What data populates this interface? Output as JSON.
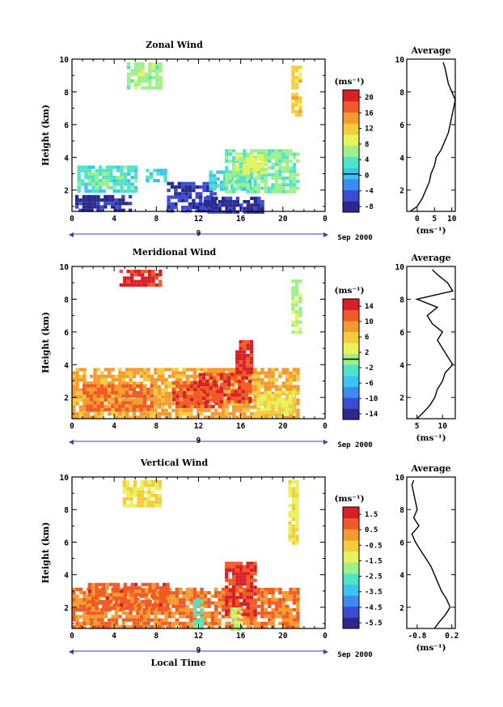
{
  "figure": {
    "date_label": "Sep 2000",
    "x_axis_title": "Local Time",
    "y_axis_title": "Height (km)",
    "unit": "(ms⁻¹)",
    "profile_title": "Average",
    "day_label": "9"
  },
  "chart_data": [
    {
      "type": "heatmap",
      "title": "Zonal Wind",
      "ylabel": "Height (km)",
      "x_ticks": [
        "0",
        "4",
        "8",
        "12",
        "16",
        "20",
        "0"
      ],
      "x_range": [
        0,
        24
      ],
      "y_ticks": [
        "2",
        "4",
        "6",
        "8",
        "10"
      ],
      "y_range": [
        0.7,
        10
      ],
      "colorbar_ticks": [
        "20",
        "16",
        "12",
        "8",
        "4",
        "0",
        "-4",
        "-8"
      ],
      "colorbar_range": [
        -10,
        22
      ],
      "colorbar_zero": 0,
      "patches": [
        {
          "t0": 0.3,
          "t1": 5.5,
          "z0": 0.7,
          "z1": 1.7,
          "v": -8
        },
        {
          "t0": 0.5,
          "t1": 6.0,
          "z0": 1.9,
          "z1": 3.5,
          "v": 3
        },
        {
          "t0": 1.5,
          "t1": 3.5,
          "z0": 2.4,
          "z1": 3.1,
          "v": 5
        },
        {
          "t0": 7.0,
          "t1": 9.0,
          "z0": 2.5,
          "z1": 3.3,
          "v": 2
        },
        {
          "t0": 9.0,
          "t1": 13.5,
          "z0": 0.7,
          "z1": 2.5,
          "v": -7
        },
        {
          "t0": 12.5,
          "t1": 18.0,
          "z0": 0.7,
          "z1": 1.6,
          "v": -8
        },
        {
          "t0": 13.0,
          "t1": 17.0,
          "z0": 2.0,
          "z1": 3.2,
          "v": 2
        },
        {
          "t0": 14.5,
          "t1": 21.5,
          "z0": 1.8,
          "z1": 4.5,
          "v": 5
        },
        {
          "t0": 15.5,
          "t1": 18.5,
          "z0": 3.0,
          "z1": 4.2,
          "v": 8
        },
        {
          "t0": 5.2,
          "t1": 8.3,
          "z0": 8.2,
          "z1": 9.8,
          "v": 6
        },
        {
          "t0": 20.8,
          "t1": 21.6,
          "z0": 6.5,
          "z1": 9.6,
          "v": 12
        }
      ],
      "profile": {
        "x_ticks": [
          "0",
          "5",
          "10"
        ],
        "x_range": [
          -3,
          11
        ],
        "z": [
          0.7,
          1.0,
          1.5,
          2.0,
          2.5,
          3.0,
          3.5,
          4.0,
          4.5,
          5.0,
          5.5,
          6.0,
          6.5,
          7.0,
          7.5,
          8.0,
          8.5,
          9.0,
          9.5,
          9.8
        ],
        "v": [
          -2,
          0,
          1.5,
          2.5,
          3.5,
          4,
          5,
          5.5,
          7,
          8,
          9,
          9.5,
          10,
          10.5,
          11,
          10,
          9,
          8.5,
          8,
          7.5
        ]
      }
    },
    {
      "type": "heatmap",
      "title": "Meridional Wind",
      "ylabel": "Height (km)",
      "x_ticks": [
        "0",
        "4",
        "8",
        "12",
        "16",
        "20",
        "0"
      ],
      "x_range": [
        0,
        24
      ],
      "y_ticks": [
        "2",
        "4",
        "6",
        "8",
        "10"
      ],
      "y_range": [
        0.7,
        10
      ],
      "colorbar_ticks": [
        "14",
        "10",
        "6",
        "2",
        "-2",
        "-6",
        "-10",
        "-14"
      ],
      "colorbar_range": [
        -16,
        16
      ],
      "colorbar_zero": 0,
      "patches": [
        {
          "t0": 0.0,
          "t1": 21.5,
          "z0": 0.7,
          "z1": 3.8,
          "v": 8
        },
        {
          "t0": 1.0,
          "t1": 7.5,
          "z0": 1.2,
          "z1": 2.8,
          "v": 11
        },
        {
          "t0": 9.5,
          "t1": 14.0,
          "z0": 1.5,
          "z1": 3.0,
          "v": 12
        },
        {
          "t0": 12.0,
          "t1": 17.0,
          "z0": 1.8,
          "z1": 3.5,
          "v": 13
        },
        {
          "t0": 15.5,
          "t1": 17.0,
          "z0": 3.5,
          "z1": 5.5,
          "v": 14
        },
        {
          "t0": 4.5,
          "t1": 8.5,
          "z0": 8.8,
          "z1": 9.8,
          "v": 14
        },
        {
          "t0": 17.5,
          "t1": 21.0,
          "z0": 1.0,
          "z1": 2.4,
          "v": 4
        },
        {
          "t0": 20.8,
          "t1": 21.6,
          "z0": 6.0,
          "z1": 9.2,
          "v": 1
        }
      ],
      "profile": {
        "x_ticks": [
          "5",
          "10"
        ],
        "x_range": [
          3,
          12.5
        ],
        "z": [
          0.7,
          1.0,
          1.5,
          2.0,
          2.5,
          3.0,
          3.5,
          4.0,
          4.5,
          5.0,
          5.5,
          6.0,
          6.5,
          7.0,
          7.5,
          8.0,
          8.5,
          9.0,
          9.5,
          9.8
        ],
        "v": [
          5,
          6,
          7.5,
          8.5,
          9,
          10,
          10.5,
          12,
          11,
          10,
          9,
          10,
          8,
          7,
          9,
          5,
          12,
          11,
          9,
          8
        ]
      }
    },
    {
      "type": "heatmap",
      "title": "Vertical Wind",
      "ylabel": "Height (km)",
      "xlabel": "Local Time",
      "x_ticks": [
        "0",
        "4",
        "8",
        "12",
        "16",
        "20",
        "0"
      ],
      "x_range": [
        0,
        24
      ],
      "y_ticks": [
        "2",
        "4",
        "6",
        "8",
        "10"
      ],
      "y_range": [
        0.7,
        10
      ],
      "colorbar_ticks": [
        "1.5",
        "0.5",
        "-0.5",
        "-1.5",
        "-2.5",
        "-3.5",
        "-4.5",
        "-5.5"
      ],
      "colorbar_range": [
        -6,
        2.2
      ],
      "colorbar_zero": null,
      "patches": [
        {
          "t0": 0.0,
          "t1": 21.5,
          "z0": 0.7,
          "z1": 3.2,
          "v": 0.7
        },
        {
          "t0": 1.5,
          "t1": 9.0,
          "z0": 2.0,
          "z1": 3.5,
          "v": 1.0
        },
        {
          "t0": 14.5,
          "t1": 17.5,
          "z0": 1.5,
          "z1": 4.8,
          "v": 1.4
        },
        {
          "t0": 11.5,
          "t1": 12.4,
          "z0": 0.7,
          "z1": 2.5,
          "v": -2.5
        },
        {
          "t0": 15.0,
          "t1": 16.0,
          "z0": 0.7,
          "z1": 2.0,
          "v": -1.5
        },
        {
          "t0": 4.8,
          "t1": 8.5,
          "z0": 8.2,
          "z1": 9.8,
          "v": -0.8
        },
        {
          "t0": 20.5,
          "t1": 21.5,
          "z0": 6.0,
          "z1": 9.8,
          "v": -0.9
        }
      ],
      "profile": {
        "x_ticks": [
          "-0.8",
          "0.2"
        ],
        "x_range": [
          -1.1,
          0.3
        ],
        "z": [
          0.7,
          1.0,
          1.5,
          2.0,
          2.5,
          3.0,
          3.5,
          4.0,
          4.5,
          5.0,
          5.5,
          6.0,
          6.5,
          7.0,
          7.5,
          8.0,
          8.5,
          9.0,
          9.5,
          9.8
        ],
        "v": [
          -0.3,
          -0.2,
          0.0,
          0.15,
          0.05,
          -0.1,
          -0.2,
          -0.3,
          -0.4,
          -0.55,
          -0.7,
          -0.85,
          -0.95,
          -0.75,
          -0.9,
          -0.8,
          -0.85,
          -0.9,
          -0.95,
          -0.9
        ]
      }
    }
  ]
}
